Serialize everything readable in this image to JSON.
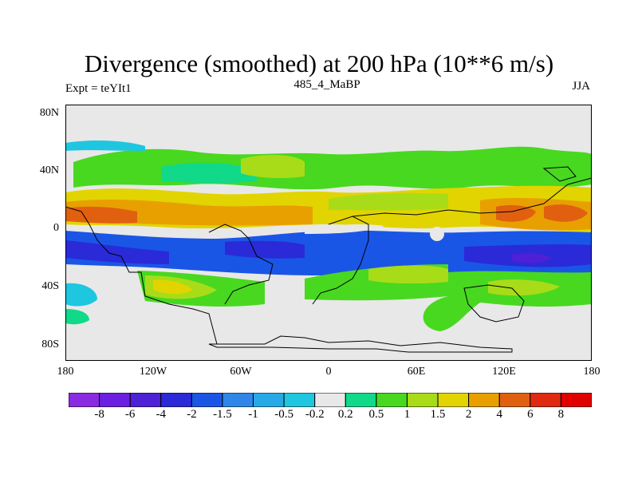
{
  "title": "Divergence (smoothed) at 200 hPa (10**6 m/s)",
  "left_label": "Expt = teYIt1",
  "center_label": "485_4_MaBP",
  "right_label": "JJA",
  "y_axis": {
    "labels": [
      "80N",
      "40N",
      "0",
      "40S",
      "80S"
    ],
    "values": [
      80,
      40,
      0,
      -40,
      -80
    ]
  },
  "x_axis": {
    "labels": [
      "180",
      "120W",
      "60W",
      "0",
      "60E",
      "120E",
      "180"
    ],
    "values": [
      -180,
      -120,
      -60,
      0,
      60,
      120,
      180
    ]
  },
  "colorbar": {
    "labels": [
      "-8",
      "-6",
      "-4",
      "-2",
      "-1.5",
      "-1",
      "-0.5",
      "-0.2",
      "0.2",
      "0.5",
      "1",
      "1.5",
      "2",
      "4",
      "6",
      "8"
    ],
    "colors": [
      "#8a2be2",
      "#6c1fe0",
      "#4e20d6",
      "#2a2ad8",
      "#1a56e6",
      "#2f86e8",
      "#27a9e8",
      "#1ec6e0",
      "#e8e8e8",
      "#10d98a",
      "#48d820",
      "#a8dc18",
      "#e2d400",
      "#e8a000",
      "#e06010",
      "#e02a10",
      "#e00000"
    ]
  },
  "colors": {
    "background_field": "#e8e8e8",
    "coast": "#000000"
  }
}
